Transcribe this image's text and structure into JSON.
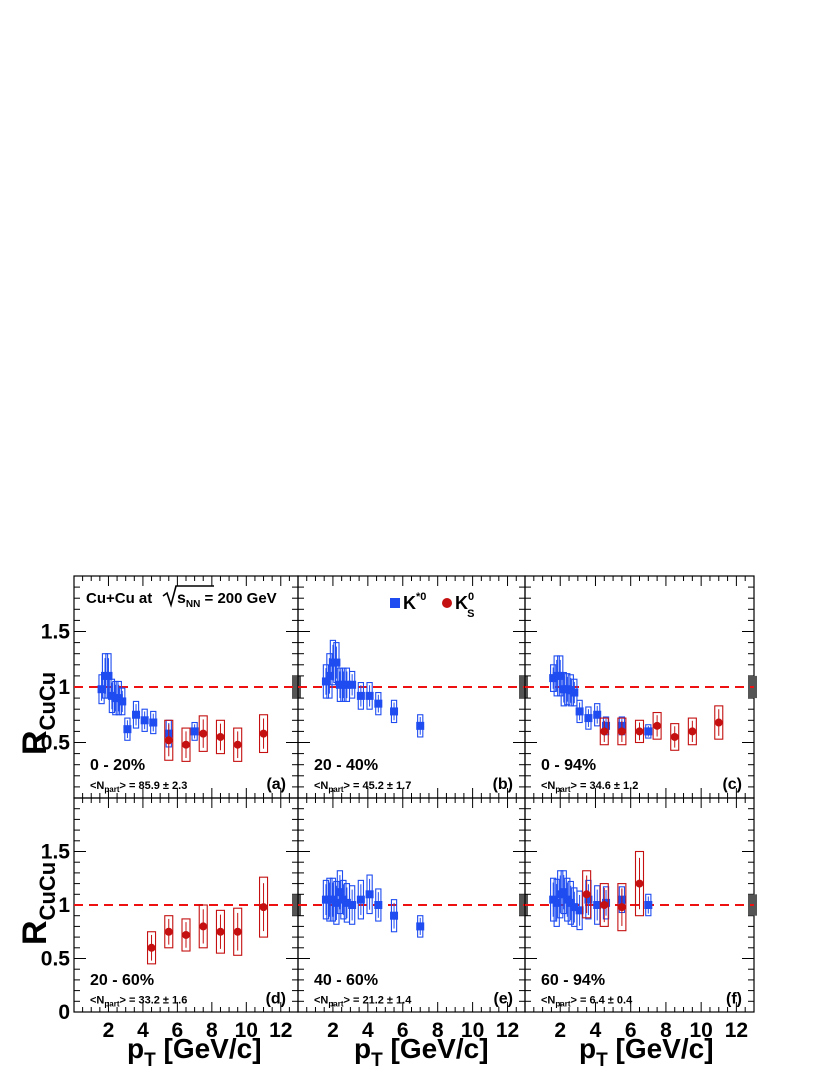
{
  "colors": {
    "kstar": "#1e4cf0",
    "k0s": "#c41010",
    "ref_line": "#ee1111",
    "norm_box": "#555555"
  },
  "labels": {
    "ylabel": "R",
    "ylabel_sub": "CuCu",
    "xlabel": "p",
    "xlabel_sub": "T",
    "xlabel_unit": " [GeV/c]",
    "system_pre": "Cu+Cu at ",
    "system_s": "s",
    "system_s_sub": "NN",
    "system_post": " = 200 GeV",
    "legend_kstar": "K",
    "legend_kstar_sup": "*0",
    "legend_k0s": "K",
    "legend_k0s_sup": "0",
    "legend_k0s_sub": "S"
  },
  "chart_data": [
    {
      "type": "scatter",
      "panel": "(a)",
      "centrality": "0 - 20%",
      "npart": "<N",
      "npart_sub": "part",
      "npart_val": "> = 85.9 ± 2.3",
      "xlim": [
        0,
        13
      ],
      "ylim": [
        0,
        2
      ],
      "yticks": [
        "0.5",
        "1",
        "1.5"
      ],
      "xticks": [
        "2",
        "4",
        "6",
        "8",
        "10",
        "12"
      ],
      "reference_line": 1,
      "series": [
        {
          "name": "K*0",
          "x": [
            1.6,
            1.8,
            2.0,
            2.2,
            2.4,
            2.6,
            2.8,
            3.1,
            3.6,
            4.1,
            4.6,
            5.5,
            7.0
          ],
          "y": [
            0.98,
            1.1,
            1.1,
            0.92,
            0.9,
            0.9,
            0.87,
            0.62,
            0.75,
            0.7,
            0.68,
            0.58,
            0.6
          ],
          "err": [
            0.13,
            0.2,
            0.2,
            0.15,
            0.15,
            0.15,
            0.12,
            0.1,
            0.12,
            0.1,
            0.1,
            0.12,
            0.08
          ]
        },
        {
          "name": "K0S",
          "x": [
            5.5,
            6.5,
            7.5,
            8.5,
            9.5,
            11.0
          ],
          "y": [
            0.52,
            0.48,
            0.58,
            0.55,
            0.48,
            0.58
          ],
          "err": [
            0.18,
            0.15,
            0.16,
            0.15,
            0.15,
            0.17
          ]
        }
      ]
    },
    {
      "type": "scatter",
      "panel": "(b)",
      "centrality": "20 - 40%",
      "npart": "<N",
      "npart_sub": "part",
      "npart_val": "> = 45.2 ± 1.7",
      "xlim": [
        0,
        13
      ],
      "ylim": [
        0,
        2
      ],
      "yticks": [],
      "xticks": [
        "2",
        "4",
        "6",
        "8",
        "10",
        "12"
      ],
      "reference_line": 1,
      "series": [
        {
          "name": "K*0",
          "x": [
            1.6,
            1.8,
            2.0,
            2.2,
            2.4,
            2.6,
            2.8,
            3.1,
            3.6,
            4.1,
            4.6,
            5.5,
            7.0
          ],
          "y": [
            1.05,
            1.1,
            1.22,
            1.22,
            1.02,
            1.02,
            1.02,
            1.02,
            0.92,
            0.92,
            0.85,
            0.78,
            0.65
          ],
          "err": [
            0.15,
            0.2,
            0.2,
            0.18,
            0.15,
            0.15,
            0.15,
            0.12,
            0.12,
            0.12,
            0.1,
            0.1,
            0.1
          ]
        }
      ]
    },
    {
      "type": "scatter",
      "panel": "(c)",
      "centrality": "0 - 94%",
      "npart": "<N",
      "npart_sub": "part",
      "npart_val": "> = 34.6 ± 1.2",
      "xlim": [
        0,
        13
      ],
      "ylim": [
        0,
        2
      ],
      "yticks": [],
      "xticks": [
        "2",
        "4",
        "6",
        "8",
        "10",
        "12"
      ],
      "reference_line": 1,
      "series": [
        {
          "name": "K*0",
          "x": [
            1.6,
            1.8,
            2.0,
            2.2,
            2.4,
            2.6,
            2.8,
            3.1,
            3.6,
            4.1,
            4.6,
            5.5,
            7.0
          ],
          "y": [
            1.08,
            1.1,
            1.1,
            0.98,
            0.98,
            0.97,
            0.95,
            0.78,
            0.72,
            0.75,
            0.65,
            0.65,
            0.6
          ],
          "err": [
            0.12,
            0.18,
            0.18,
            0.15,
            0.14,
            0.14,
            0.12,
            0.1,
            0.1,
            0.1,
            0.08,
            0.08,
            0.06
          ]
        },
        {
          "name": "K0S",
          "x": [
            4.5,
            5.5,
            6.5,
            7.5,
            8.5,
            9.5,
            11.0
          ],
          "y": [
            0.6,
            0.6,
            0.6,
            0.65,
            0.55,
            0.6,
            0.68
          ],
          "err": [
            0.12,
            0.12,
            0.1,
            0.12,
            0.12,
            0.12,
            0.15
          ]
        }
      ]
    },
    {
      "type": "scatter",
      "panel": "(d)",
      "centrality": "20 - 60%",
      "npart": "<N",
      "npart_sub": "part",
      "npart_val": "> = 33.2 ± 1.6",
      "xlim": [
        0,
        13
      ],
      "ylim": [
        0,
        2
      ],
      "yticks": [
        "0",
        "0.5",
        "1",
        "1.5"
      ],
      "xticks": [
        "2",
        "4",
        "6",
        "8",
        "10",
        "12"
      ],
      "reference_line": 1,
      "series": [
        {
          "name": "K0S",
          "x": [
            4.5,
            5.5,
            6.5,
            7.5,
            8.5,
            9.5,
            11.0
          ],
          "y": [
            0.6,
            0.75,
            0.72,
            0.8,
            0.75,
            0.75,
            0.98
          ],
          "err": [
            0.15,
            0.15,
            0.15,
            0.2,
            0.2,
            0.22,
            0.28
          ]
        }
      ]
    },
    {
      "type": "scatter",
      "panel": "(e)",
      "centrality": "40 - 60%",
      "npart": "<N",
      "npart_sub": "part",
      "npart_val": "> = 21.2 ± 1.4",
      "xlim": [
        0,
        13
      ],
      "ylim": [
        0,
        2
      ],
      "yticks": [],
      "xticks": [
        "2",
        "4",
        "6",
        "8",
        "10",
        "12"
      ],
      "reference_line": 1,
      "series": [
        {
          "name": "K*0",
          "x": [
            1.6,
            1.8,
            2.0,
            2.2,
            2.4,
            2.6,
            2.8,
            3.1,
            3.6,
            4.1,
            4.6,
            5.5,
            7.0
          ],
          "y": [
            1.05,
            1.05,
            1.05,
            1.02,
            1.12,
            1.05,
            1.02,
            1.0,
            1.05,
            1.1,
            1.0,
            0.9,
            0.8
          ],
          "err": [
            0.18,
            0.2,
            0.2,
            0.2,
            0.2,
            0.18,
            0.18,
            0.18,
            0.18,
            0.18,
            0.15,
            0.15,
            0.1
          ]
        }
      ]
    },
    {
      "type": "scatter",
      "panel": "(f)",
      "centrality": "60 - 94%",
      "npart": "<N",
      "npart_sub": "part",
      "npart_val": "> = 6.4 ± 0.4",
      "xlim": [
        0,
        13
      ],
      "ylim": [
        0,
        2
      ],
      "yticks": [],
      "xticks": [
        "2",
        "4",
        "6",
        "8",
        "10",
        "12"
      ],
      "reference_line": 1,
      "series": [
        {
          "name": "K*0",
          "x": [
            1.6,
            1.8,
            2.0,
            2.2,
            2.4,
            2.6,
            2.8,
            3.1,
            3.6,
            4.1,
            4.6,
            5.5,
            7.0
          ],
          "y": [
            1.05,
            1.02,
            1.1,
            1.12,
            1.05,
            1.02,
            0.98,
            0.95,
            1.05,
            1.0,
            1.02,
            1.05,
            1.0
          ],
          "err": [
            0.2,
            0.22,
            0.22,
            0.2,
            0.2,
            0.2,
            0.18,
            0.18,
            0.18,
            0.18,
            0.15,
            0.12,
            0.1
          ]
        },
        {
          "name": "K0S",
          "x": [
            3.5,
            4.5,
            5.5,
            6.5
          ],
          "y": [
            1.1,
            1.0,
            0.98,
            1.2
          ],
          "err": [
            0.22,
            0.2,
            0.22,
            0.3
          ]
        }
      ]
    }
  ]
}
